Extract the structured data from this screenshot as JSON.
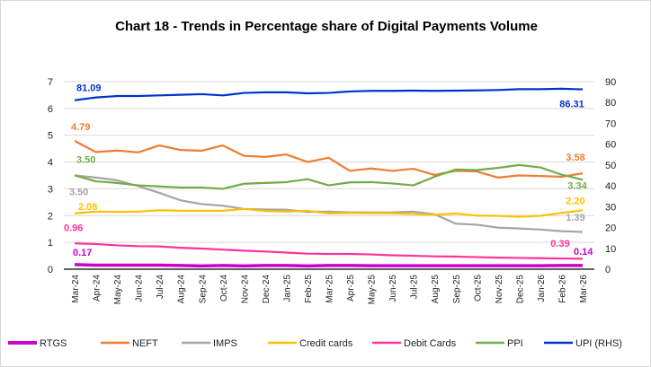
{
  "chart_data": {
    "type": "line",
    "title": "Chart 18 - Trends in Percentage share of Digital Payments Volume",
    "categories": [
      "Mar-24",
      "Apr-24",
      "May-24",
      "Jun-24",
      "Jul-24",
      "Aug-24",
      "Sep-24",
      "Oct-24",
      "Nov-24",
      "Dec-24",
      "Jan-25",
      "Feb-25",
      "Mar-25",
      "Apr-25",
      "May-25",
      "Jun-25",
      "Jul-25",
      "Aug-25",
      "Sep-25",
      "Oct-25",
      "Nov-25",
      "Dec-25",
      "Jan-26",
      "Feb-26",
      "Mar-26"
    ],
    "y_left": {
      "min": 0,
      "max": 7,
      "ticks": [
        0,
        1,
        2,
        3,
        4,
        5,
        6,
        7
      ]
    },
    "y_right": {
      "min": 0,
      "max": 90,
      "ticks": [
        0,
        10,
        20,
        30,
        40,
        50,
        60,
        70,
        80,
        90
      ]
    },
    "grid": true,
    "legend": "bottom",
    "series": [
      {
        "name": "RTGS",
        "color": "#cc00cc",
        "axis": "left",
        "values": [
          0.17,
          0.15,
          0.15,
          0.15,
          0.15,
          0.14,
          0.12,
          0.14,
          0.12,
          0.14,
          0.14,
          0.12,
          0.14,
          0.14,
          0.13,
          0.13,
          0.13,
          0.13,
          0.13,
          0.13,
          0.13,
          0.13,
          0.13,
          0.14,
          0.14
        ],
        "labels": {
          "first": "0.17",
          "last": "0.14"
        }
      },
      {
        "name": "NEFT",
        "color": "#ed7d31",
        "axis": "left",
        "values": [
          4.79,
          4.37,
          4.43,
          4.36,
          4.62,
          4.45,
          4.42,
          4.62,
          4.23,
          4.19,
          4.28,
          4.0,
          4.16,
          3.67,
          3.76,
          3.67,
          3.75,
          3.52,
          3.67,
          3.65,
          3.42,
          3.5,
          3.48,
          3.45,
          3.58
        ],
        "labels": {
          "first": "4.79",
          "last": "3.58"
        }
      },
      {
        "name": "IMPS",
        "color": "#a5a5a5",
        "axis": "left",
        "values": [
          3.5,
          3.42,
          3.32,
          3.1,
          2.85,
          2.57,
          2.43,
          2.37,
          2.25,
          2.23,
          2.22,
          2.14,
          2.15,
          2.12,
          2.12,
          2.12,
          2.15,
          2.05,
          1.7,
          1.66,
          1.55,
          1.52,
          1.48,
          1.42,
          1.39
        ],
        "labels": {
          "first": "3.50",
          "last": "1.39"
        }
      },
      {
        "name": "Credit cards",
        "color": "#ffc000",
        "axis": "left",
        "values": [
          2.08,
          2.15,
          2.14,
          2.15,
          2.2,
          2.18,
          2.18,
          2.18,
          2.25,
          2.17,
          2.15,
          2.18,
          2.08,
          2.1,
          2.09,
          2.09,
          2.06,
          2.03,
          2.08,
          2.0,
          1.99,
          1.96,
          1.99,
          2.1,
          2.2
        ],
        "labels": {
          "first": "2.08",
          "last": "2.20"
        }
      },
      {
        "name": "Debit Cards",
        "color": "#ff3399",
        "axis": "left",
        "values": [
          0.96,
          0.94,
          0.89,
          0.86,
          0.85,
          0.8,
          0.77,
          0.73,
          0.69,
          0.66,
          0.62,
          0.58,
          0.57,
          0.57,
          0.55,
          0.52,
          0.5,
          0.48,
          0.47,
          0.45,
          0.43,
          0.42,
          0.41,
          0.4,
          0.39
        ],
        "labels": {
          "first": "0.96",
          "last": "0.39"
        }
      },
      {
        "name": "PPI",
        "color": "#70ad47",
        "axis": "left",
        "values": [
          3.5,
          3.28,
          3.22,
          3.13,
          3.09,
          3.05,
          3.05,
          3.0,
          3.19,
          3.22,
          3.25,
          3.36,
          3.13,
          3.24,
          3.25,
          3.2,
          3.13,
          3.45,
          3.72,
          3.7,
          3.78,
          3.89,
          3.8,
          3.53,
          3.34
        ],
        "labels": {
          "first": "3.50",
          "last": "3.34"
        }
      },
      {
        "name": "UPI (RHS)",
        "color": "#0033cc",
        "axis": "right",
        "values": [
          81.09,
          82.4,
          83.1,
          83.1,
          83.4,
          83.7,
          84.0,
          83.4,
          84.6,
          84.9,
          84.9,
          84.4,
          84.6,
          85.3,
          85.6,
          85.6,
          85.7,
          85.6,
          85.7,
          85.8,
          86.0,
          86.4,
          86.4,
          86.6,
          86.31
        ],
        "labels": {
          "first": "81.09",
          "last": "86.31"
        }
      }
    ]
  }
}
